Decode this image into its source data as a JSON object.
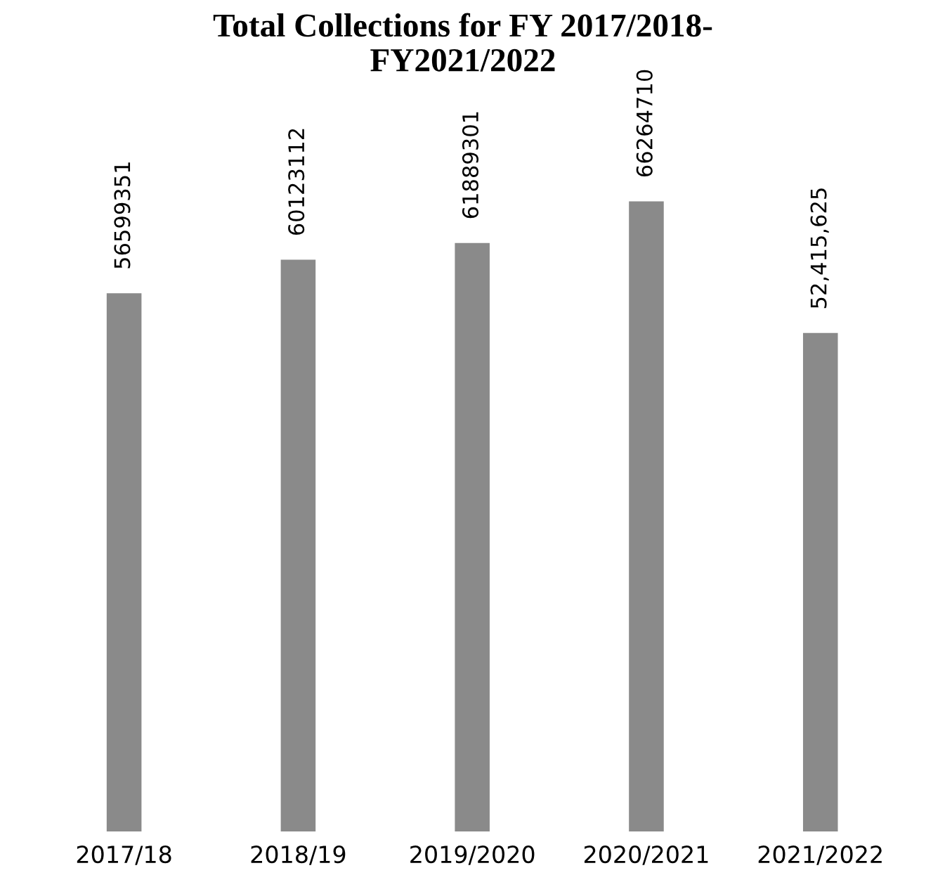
{
  "chart_data": {
    "type": "bar",
    "title": "Total Collections for FY 2017/2018-\nFY2021/2022",
    "categories": [
      "2017/18",
      "2018/19",
      "2019/2020",
      "2020/2021",
      "2021/2022"
    ],
    "values": [
      56599351,
      60123112,
      61889301,
      66264710,
      52415625
    ],
    "value_labels": [
      "56599351",
      "60123112",
      "61889301",
      "66264710",
      "52,415,625"
    ],
    "color": "#8a8a8a",
    "tick_labels": "x",
    "grid": false,
    "legend": false
  }
}
